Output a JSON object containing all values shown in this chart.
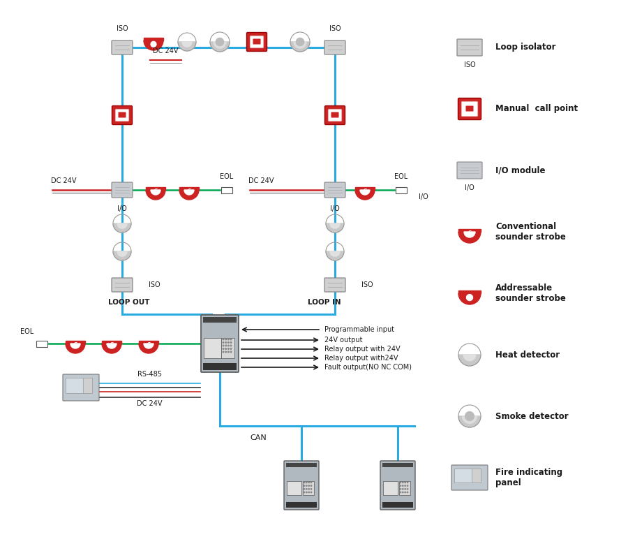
{
  "bg_color": "#ffffff",
  "loop_color": "#29abe2",
  "green_color": "#00a651",
  "red_color": "#cc2222",
  "black_color": "#1a1a1a",
  "gray_color": "#aaaaaa",
  "lgray_color": "#cccccc",
  "white_color": "#ffffff",
  "output_labels": [
    "Programmable input",
    "24V output",
    "Relay output with 24V",
    "Relay output with24V",
    "Fault output(NO NC COM)"
  ],
  "legend_labels": [
    "Loop isolator",
    "Manual  call point",
    "I/O module",
    "Conventional\nsounder strobe",
    "Addressable\nsounder strobe",
    "Heat detector",
    "Smoke detector",
    "Fire indicating\npanel"
  ]
}
